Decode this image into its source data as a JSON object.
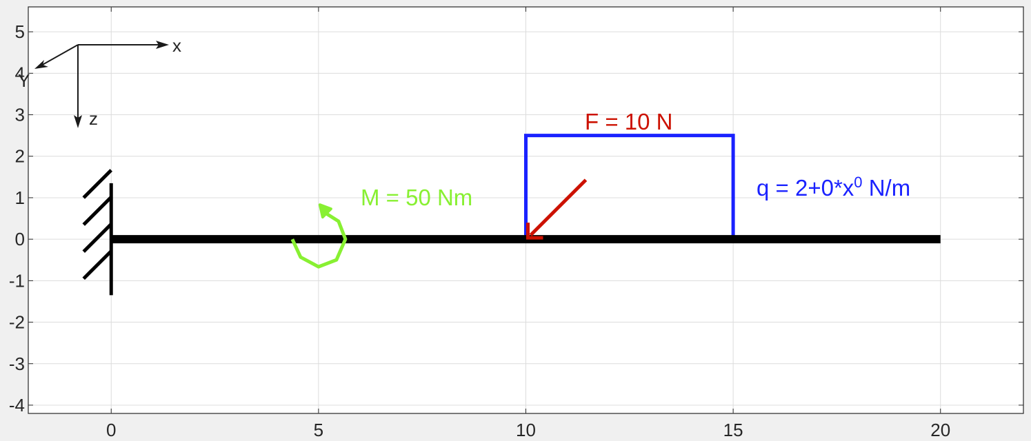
{
  "chart_data": {
    "type": "diagram",
    "xlim": [
      -2,
      22
    ],
    "ylim": [
      -4.2,
      5.6
    ],
    "xticks": [
      0,
      5,
      10,
      15,
      20
    ],
    "yticks": [
      -4,
      -3,
      -2,
      -1,
      0,
      1,
      2,
      3,
      4,
      5
    ],
    "grid": true,
    "beam": {
      "x_start": 0,
      "x_end": 20,
      "y": 0
    },
    "support": {
      "type": "fixed",
      "x": 0
    },
    "moment": {
      "label": "M = 50 Nm",
      "x": 5,
      "color": "#88f032"
    },
    "force": {
      "label": "F = 10 N",
      "x": 10,
      "color": "#cc1100"
    },
    "distributed_load": {
      "label_prefix": "q  =  2+0*x",
      "label_exp": "0",
      "label_suffix": " N/m",
      "x_start": 10,
      "x_end": 15,
      "height": 2.5,
      "color": "#1a22ff"
    },
    "triad": {
      "x_label": "x",
      "y_label": "Y",
      "z_label": "z"
    }
  }
}
